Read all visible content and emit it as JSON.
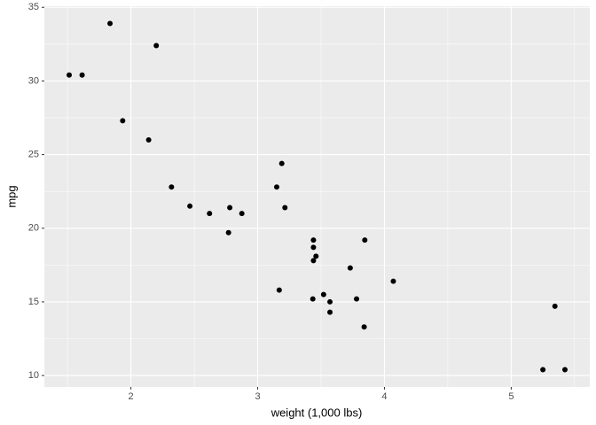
{
  "chart_data": {
    "type": "scatter",
    "x_label": "weight (1,000 lbs)",
    "y_label": "mpg",
    "x": [
      2.62,
      2.875,
      2.32,
      3.215,
      3.44,
      3.46,
      3.57,
      3.19,
      3.15,
      3.44,
      3.44,
      4.07,
      3.73,
      3.78,
      5.25,
      5.424,
      5.345,
      2.2,
      1.615,
      1.835,
      2.465,
      3.52,
      3.435,
      3.84,
      3.845,
      1.935,
      2.14,
      1.513,
      3.17,
      2.77,
      3.57,
      2.78
    ],
    "values": [
      21.0,
      21.0,
      22.8,
      21.4,
      18.7,
      18.1,
      14.3,
      24.4,
      22.8,
      19.2,
      17.8,
      16.4,
      17.3,
      15.2,
      10.4,
      10.4,
      14.7,
      32.4,
      30.4,
      33.9,
      21.5,
      15.5,
      15.2,
      13.3,
      19.2,
      27.3,
      26.0,
      30.4,
      15.8,
      19.7,
      15.0,
      21.4
    ],
    "color": "#000000",
    "xlim": [
      1.317,
      5.62
    ],
    "ylim": [
      9.225,
      35.075
    ],
    "xticks": [
      2,
      3,
      4,
      5
    ],
    "yticks": [
      10,
      15,
      20,
      25,
      30,
      35
    ],
    "x_minor_ticks": [
      1.5,
      2.5,
      3.5,
      4.5,
      5.5
    ],
    "y_minor_ticks": [
      12.5,
      17.5,
      22.5,
      27.5,
      32.5
    ],
    "grid": true
  }
}
